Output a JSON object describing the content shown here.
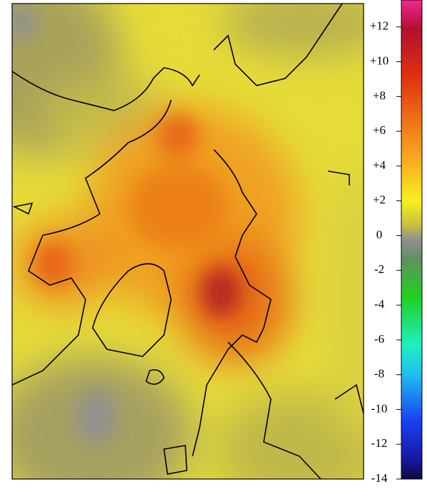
{
  "colorbar": {
    "range": [
      -14,
      14
    ],
    "ticks": [
      {
        "value": 12,
        "label": "+12"
      },
      {
        "value": 10,
        "label": "+10"
      },
      {
        "value": 8,
        "label": "+8"
      },
      {
        "value": 6,
        "label": "+6"
      },
      {
        "value": 4,
        "label": "+4"
      },
      {
        "value": 2,
        "label": "+2"
      },
      0,
      -2,
      -4,
      -6,
      -8,
      -10,
      -12,
      -14
    ]
  }
}
